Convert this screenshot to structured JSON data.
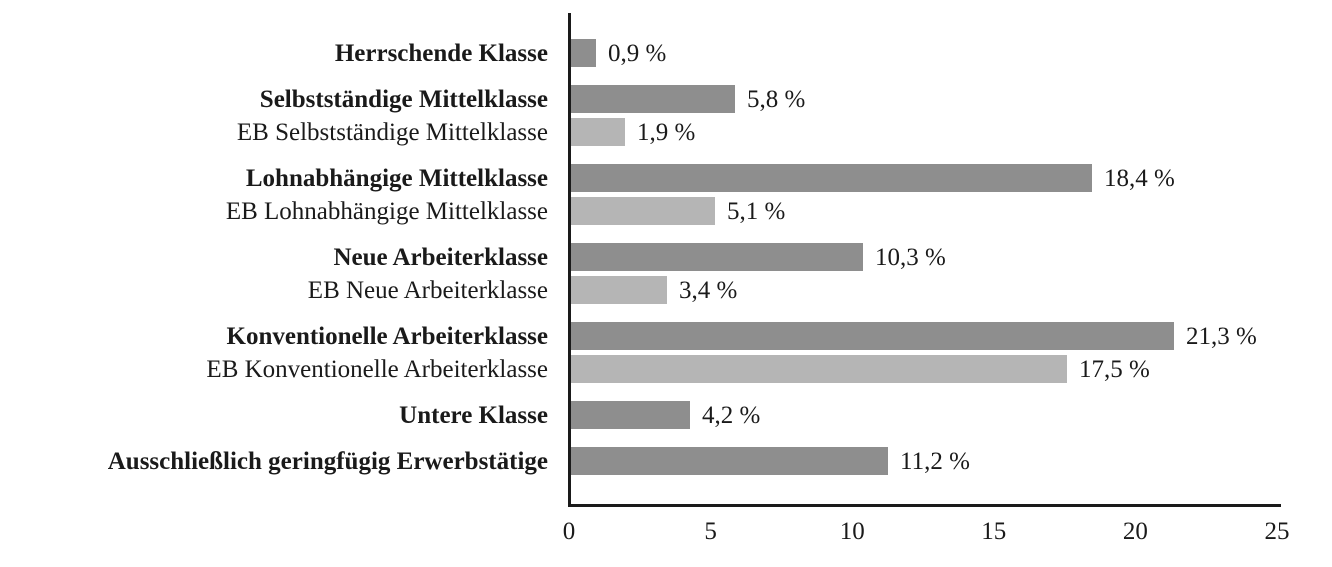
{
  "chart_data": {
    "type": "bar",
    "orientation": "horizontal",
    "title": "",
    "xlabel": "",
    "ylabel": "",
    "xlim": [
      0,
      25
    ],
    "x_ticks": [
      0,
      5,
      10,
      15,
      20,
      25
    ],
    "x_tick_labels": [
      "0",
      "5",
      "10",
      "15",
      "20",
      "25"
    ],
    "grid": false,
    "legend": false,
    "colors": {
      "bar_main": "#8e8e8e",
      "bar_eb": "#b5b5b5",
      "axis": "#1a1a1a",
      "text": "#1a1a1a",
      "background": "#ffffff"
    },
    "groups": [
      {
        "bars": [
          {
            "label": "Herrschende Klasse",
            "value": 0.9,
            "value_label": "0,9 %",
            "style": "main",
            "bold": true
          }
        ]
      },
      {
        "bars": [
          {
            "label": "Selbstständige Mittelklasse",
            "value": 5.8,
            "value_label": "5,8 %",
            "style": "main",
            "bold": true
          },
          {
            "label": "EB Selbstständige Mittelklasse",
            "value": 1.9,
            "value_label": "1,9 %",
            "style": "eb",
            "bold": false
          }
        ]
      },
      {
        "bars": [
          {
            "label": "Lohnabhängige Mittelklasse",
            "value": 18.4,
            "value_label": "18,4 %",
            "style": "main",
            "bold": true
          },
          {
            "label": "EB Lohnabhängige Mittelklasse",
            "value": 5.1,
            "value_label": "5,1 %",
            "style": "eb",
            "bold": false
          }
        ]
      },
      {
        "bars": [
          {
            "label": "Neue Arbeiterklasse",
            "value": 10.3,
            "value_label": "10,3 %",
            "style": "main",
            "bold": true
          },
          {
            "label": "EB Neue Arbeiterklasse",
            "value": 3.4,
            "value_label": "3,4 %",
            "style": "eb",
            "bold": false
          }
        ]
      },
      {
        "bars": [
          {
            "label": "Konventionelle Arbeiterklasse",
            "value": 21.3,
            "value_label": "21,3 %",
            "style": "main",
            "bold": true
          },
          {
            "label": "EB Konventionelle Arbeiterklasse",
            "value": 17.5,
            "value_label": "17,5 %",
            "style": "eb",
            "bold": false
          }
        ]
      },
      {
        "bars": [
          {
            "label": "Untere Klasse",
            "value": 4.2,
            "value_label": "4,2 %",
            "style": "main",
            "bold": true
          }
        ]
      },
      {
        "bars": [
          {
            "label": "Ausschließlich geringfügig Erwerbstätige",
            "value": 11.2,
            "value_label": "11,2 %",
            "style": "main",
            "bold": true
          }
        ]
      }
    ]
  }
}
